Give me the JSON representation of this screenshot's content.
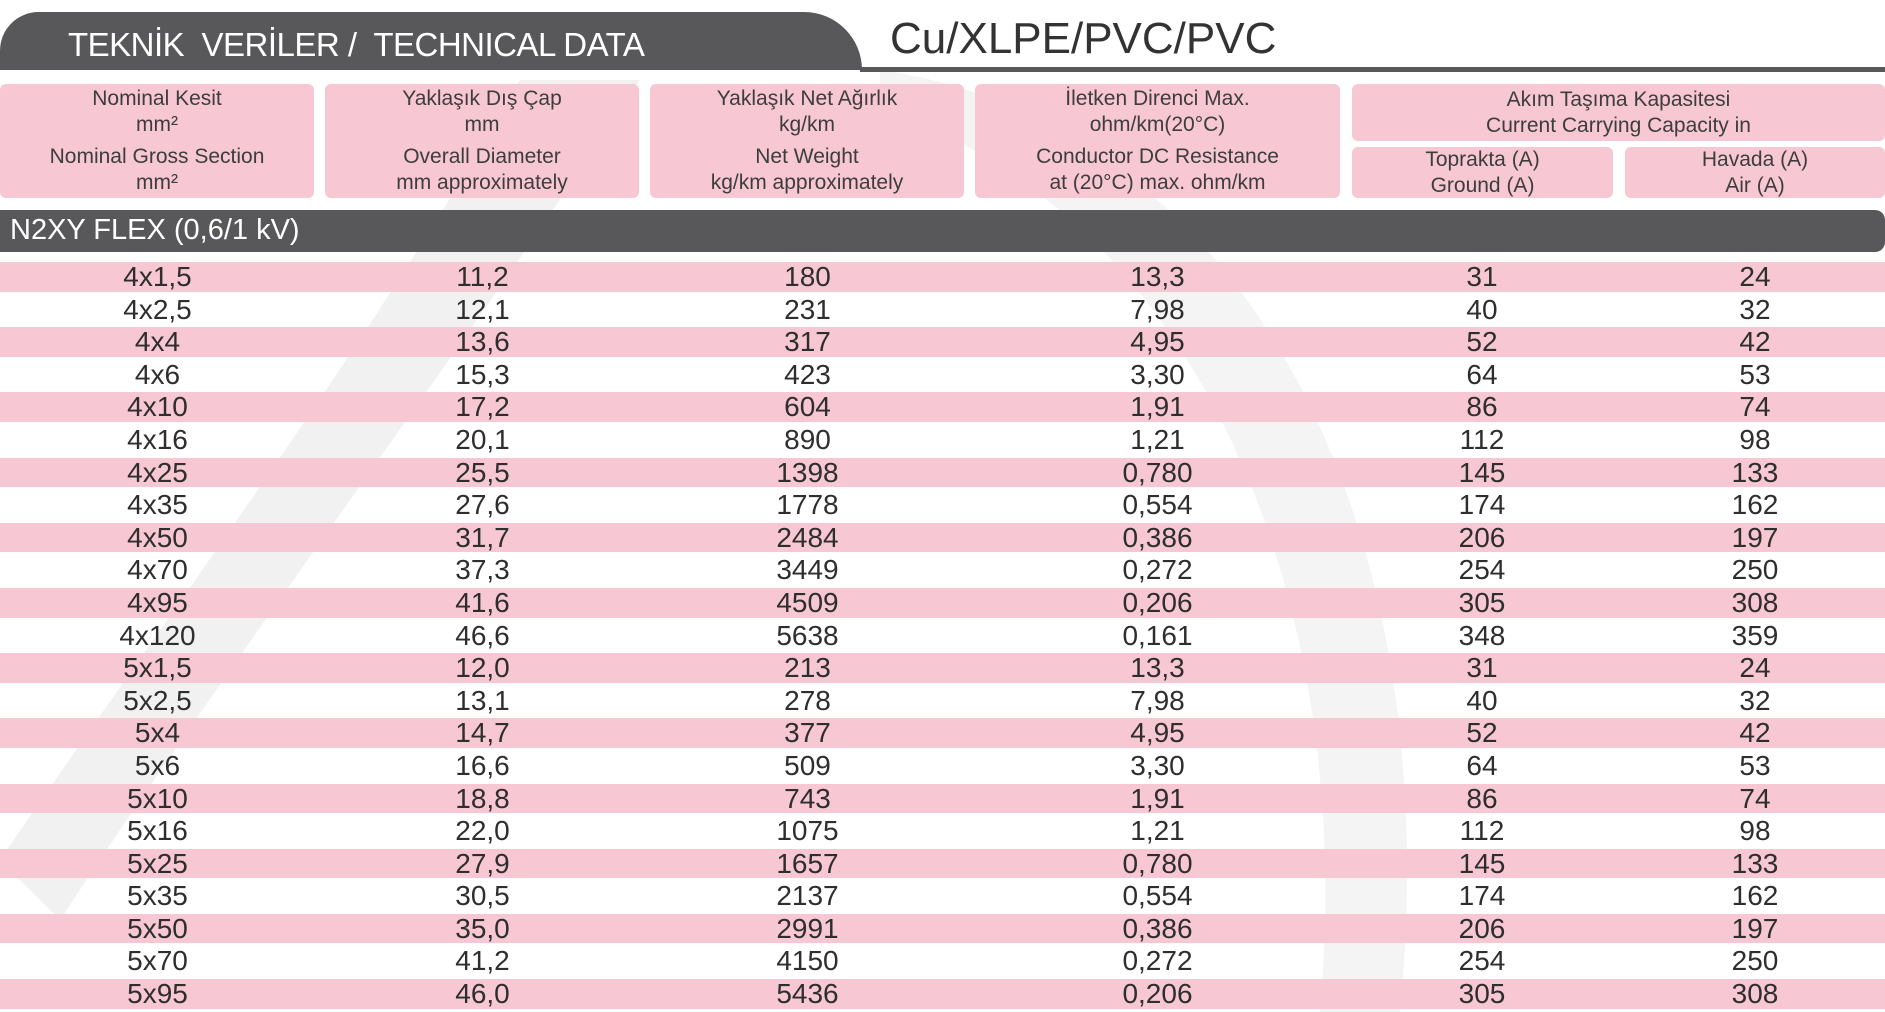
{
  "header": {
    "title": "TEKNİK  VERİLER /  TECHNICAL DATA",
    "cable_type": "Cu/XLPE/PVC/PVC"
  },
  "columns": [
    {
      "tr": "Nominal Kesit",
      "tr_unit": "mm²",
      "en": "Nominal Gross Section",
      "en_unit": "mm²"
    },
    {
      "tr": "Yaklaşık Dış Çap",
      "tr_unit": "mm",
      "en": "Overall Diameter",
      "en_unit": "mm approximately"
    },
    {
      "tr": "Yaklaşık Net Ağırlık",
      "tr_unit": "kg/km",
      "en": "Net Weight",
      "en_unit": "kg/km approximately"
    },
    {
      "tr": "İletken Direnci Max.",
      "tr_unit": "ohm/km(20°C)",
      "en": "Conductor DC Resistance",
      "en_unit": "at (20°C) max. ohm/km"
    }
  ],
  "capacity": {
    "title_tr": "Akım Taşıma Kapasitesi",
    "title_en": "Current Carrying Capacity in",
    "ground_tr": "Toprakta (A)",
    "ground_en": "Ground (A)",
    "air_tr": "Havada (A)",
    "air_en": "Air (A)"
  },
  "section": {
    "title": "N2XY FLEX (0,6/1 kV)"
  },
  "rows": [
    [
      "4x1,5",
      "11,2",
      "180",
      "13,3",
      "31",
      "24"
    ],
    [
      "4x2,5",
      "12,1",
      "231",
      "7,98",
      "40",
      "32"
    ],
    [
      "4x4",
      "13,6",
      "317",
      "4,95",
      "52",
      "42"
    ],
    [
      "4x6",
      "15,3",
      "423",
      "3,30",
      "64",
      "53"
    ],
    [
      "4x10",
      "17,2",
      "604",
      "1,91",
      "86",
      "74"
    ],
    [
      "4x16",
      "20,1",
      "890",
      "1,21",
      "112",
      "98"
    ],
    [
      "4x25",
      "25,5",
      "1398",
      "0,780",
      "145",
      "133"
    ],
    [
      "4x35",
      "27,6",
      "1778",
      "0,554",
      "174",
      "162"
    ],
    [
      "4x50",
      "31,7",
      "2484",
      "0,386",
      "206",
      "197"
    ],
    [
      "4x70",
      "37,3",
      "3449",
      "0,272",
      "254",
      "250"
    ],
    [
      "4x95",
      "41,6",
      "4509",
      "0,206",
      "305",
      "308"
    ],
    [
      "4x120",
      "46,6",
      "5638",
      "0,161",
      "348",
      "359"
    ],
    [
      "5x1,5",
      "12,0",
      "213",
      "13,3",
      "31",
      "24"
    ],
    [
      "5x2,5",
      "13,1",
      "278",
      "7,98",
      "40",
      "32"
    ],
    [
      "5x4",
      "14,7",
      "377",
      "4,95",
      "52",
      "42"
    ],
    [
      "5x6",
      "16,6",
      "509",
      "3,30",
      "64",
      "53"
    ],
    [
      "5x10",
      "18,8",
      "743",
      "1,91",
      "86",
      "74"
    ],
    [
      "5x16",
      "22,0",
      "1075",
      "1,21",
      "112",
      "98"
    ],
    [
      "5x25",
      "27,9",
      "1657",
      "0,780",
      "145",
      "133"
    ],
    [
      "5x35",
      "30,5",
      "2137",
      "0,554",
      "174",
      "162"
    ],
    [
      "5x50",
      "35,0",
      "2991",
      "0,386",
      "206",
      "197"
    ],
    [
      "5x70",
      "41,2",
      "4150",
      "0,272",
      "254",
      "250"
    ],
    [
      "5x95",
      "46,0",
      "5436",
      "0,206",
      "305",
      "308"
    ]
  ],
  "colors": {
    "accent_pink": "#f7c7d3",
    "dark_gray": "#58585a"
  }
}
